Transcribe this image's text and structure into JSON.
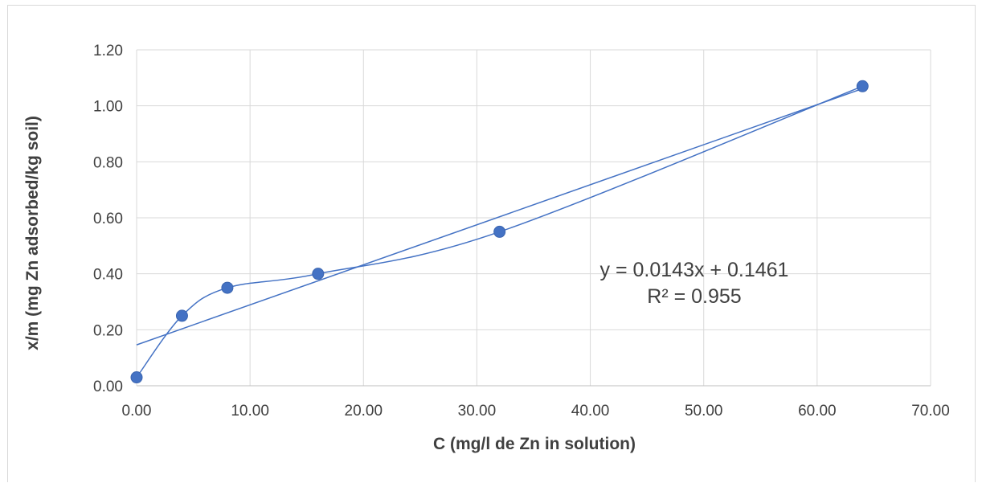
{
  "chart_data": {
    "type": "scatter",
    "title": "",
    "xlabel": "C (mg/l de Zn in solution)",
    "ylabel": "x/m (mg Zn adsorbed/kg soil)",
    "xlim": [
      0,
      70
    ],
    "ylim": [
      0,
      1.2
    ],
    "xticks": [
      "0.00",
      "10.00",
      "20.00",
      "30.00",
      "40.00",
      "50.00",
      "60.00",
      "70.00"
    ],
    "yticks": [
      "0.00",
      "0.20",
      "0.40",
      "0.60",
      "0.80",
      "1.00",
      "1.20"
    ],
    "grid": true,
    "smooth_line": true,
    "series": [
      {
        "x": [
          0,
          4,
          8,
          16,
          32,
          64
        ],
        "y": [
          0.03,
          0.25,
          0.35,
          0.4,
          0.55,
          1.07
        ]
      }
    ],
    "trendline": {
      "type": "linear",
      "slope": 0.0143,
      "intercept": 0.1461,
      "equation": "y = 0.0143x + 0.1461",
      "r_squared": "R² = 0.955"
    },
    "colors": {
      "series": "#4472c4",
      "grid": "#d9d9d9",
      "text": "#404040"
    }
  }
}
